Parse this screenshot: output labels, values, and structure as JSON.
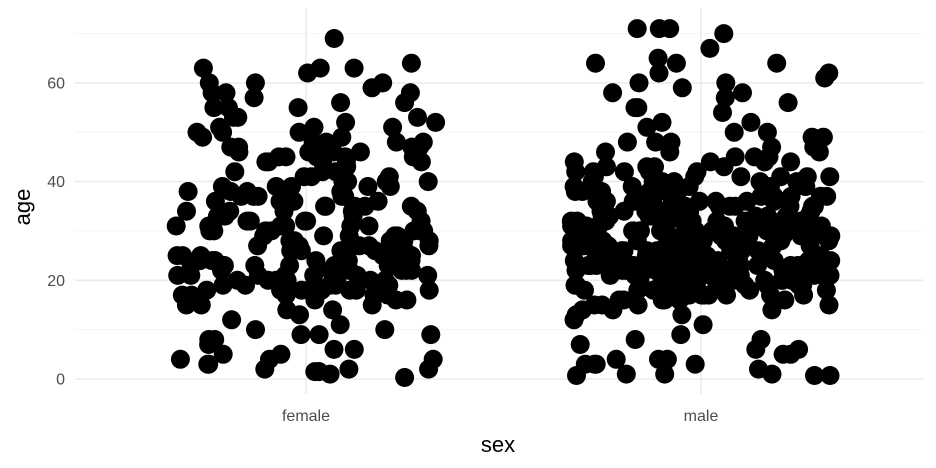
{
  "chart_data": {
    "type": "scatter",
    "jitter": true,
    "title": "",
    "xlabel": "sex",
    "ylabel": "age",
    "categories": [
      "female",
      "male"
    ],
    "y_ticks": [
      "0",
      "20",
      "40",
      "60"
    ],
    "ylim": [
      -3,
      73
    ],
    "grid": true,
    "legend": "none",
    "point_color": "#000000",
    "series": [
      {
        "category": "female",
        "values": [
          1.5,
          64,
          69,
          51,
          52,
          45,
          47,
          44,
          56,
          58,
          55,
          50,
          53,
          60,
          62,
          49,
          45,
          35,
          32,
          36,
          30,
          25,
          22,
          24,
          20,
          23,
          18,
          16,
          11,
          12,
          9,
          4,
          2,
          3,
          8,
          7,
          1.5,
          2,
          52,
          48,
          50,
          46,
          40,
          39,
          41,
          44,
          38,
          37,
          35,
          33,
          36,
          30,
          28,
          29,
          27,
          26,
          25,
          24,
          22,
          21,
          20,
          19,
          18,
          17,
          16,
          15,
          14,
          10,
          6,
          4,
          1,
          2,
          1.5,
          63,
          63,
          57,
          58,
          55,
          50,
          49,
          48,
          46,
          44,
          42,
          40,
          38,
          36,
          34,
          32,
          30,
          29,
          28,
          26,
          25,
          23,
          22,
          21,
          20,
          18,
          17,
          15,
          13,
          6,
          60,
          47,
          46,
          45,
          40,
          39,
          38,
          36,
          35,
          33,
          31,
          29,
          27,
          26,
          24,
          22,
          21,
          19,
          18,
          17,
          15,
          53,
          55,
          51,
          48,
          46,
          44,
          42,
          40,
          38,
          36,
          34,
          32,
          30,
          28,
          26,
          25,
          23,
          22,
          20,
          19,
          16,
          9,
          8,
          4,
          5,
          0.3,
          59,
          60,
          58,
          63,
          56,
          53,
          51,
          47,
          45,
          43,
          41,
          39,
          37,
          35,
          33,
          31,
          30,
          28,
          27,
          25,
          24,
          23,
          22,
          21,
          19,
          18,
          17,
          14,
          10,
          9,
          3,
          48,
          47,
          45,
          44,
          42,
          38,
          37,
          35,
          34,
          32,
          31,
          30,
          29,
          27,
          26,
          24,
          23,
          21,
          20,
          19,
          5,
          37,
          34,
          31,
          29,
          26,
          24,
          22,
          20,
          18,
          16,
          33,
          31,
          28,
          27,
          25,
          23,
          21,
          19,
          17,
          41,
          39,
          36,
          33,
          31,
          28,
          26,
          24,
          22,
          20,
          18,
          39,
          37,
          34,
          32,
          30,
          27,
          25,
          23,
          21,
          19
        ]
      },
      {
        "category": "male",
        "values": [
          0.7,
          0.7,
          59,
          64,
          65,
          70,
          71,
          71,
          67,
          64,
          61,
          62,
          60,
          58,
          55,
          56,
          52,
          50,
          51,
          48,
          49,
          46,
          45,
          44,
          43,
          42,
          41,
          40,
          39,
          38,
          37,
          36,
          35,
          34,
          33,
          32,
          31,
          30,
          29,
          28,
          27,
          26,
          25,
          24,
          23,
          22,
          21,
          20,
          19,
          18,
          17,
          16,
          15,
          14,
          13,
          12,
          11,
          9,
          8,
          7,
          6,
          5,
          4,
          3,
          3,
          1,
          0.7,
          1,
          2,
          3,
          4,
          71,
          64,
          62,
          60,
          58,
          57,
          55,
          54,
          52,
          50,
          48,
          47,
          46,
          44,
          43,
          42,
          41,
          40,
          39,
          38,
          37,
          36,
          35,
          34,
          33,
          32,
          31,
          30,
          29,
          28,
          27,
          26,
          25,
          24,
          23,
          22,
          21,
          20,
          19,
          18,
          17,
          16,
          13,
          8,
          6,
          5,
          4,
          3,
          1,
          49,
          48,
          47,
          45,
          44,
          42,
          41,
          40,
          38,
          37,
          36,
          35,
          34,
          33,
          32,
          31,
          30,
          29,
          28,
          27,
          26,
          25,
          24,
          23,
          22,
          21,
          20,
          19,
          18,
          17,
          16,
          15,
          14,
          46,
          45,
          44,
          43,
          42,
          41,
          40,
          39,
          38,
          37,
          36,
          35,
          34,
          33,
          32,
          31,
          30,
          29,
          28,
          27,
          26,
          25,
          24,
          23,
          22,
          21,
          20,
          19,
          18,
          17,
          16,
          15,
          14,
          43,
          42,
          41,
          40,
          39,
          38,
          37,
          36,
          35,
          34,
          33,
          32,
          31,
          30,
          29,
          28,
          27,
          26,
          25,
          24,
          23,
          22,
          21,
          20,
          19,
          18,
          17,
          16,
          15,
          41,
          40,
          39,
          38,
          37,
          36,
          35,
          34,
          33,
          32,
          31,
          30,
          29,
          28,
          27,
          26,
          25,
          24,
          23,
          22,
          21,
          20,
          19,
          18,
          17,
          16,
          39,
          38,
          37,
          36,
          35,
          34,
          33,
          32,
          31,
          30,
          29,
          28,
          27,
          26,
          25,
          24,
          23,
          22,
          21,
          20,
          19,
          18,
          17,
          37,
          36,
          35,
          34,
          33,
          32,
          31,
          30,
          29,
          28,
          27,
          26,
          25,
          24,
          23,
          22,
          21,
          20,
          19,
          18,
          35,
          34,
          33,
          32,
          31,
          30,
          29,
          28,
          27,
          26,
          25,
          24,
          23,
          22,
          21,
          20,
          19,
          33,
          32,
          31,
          30,
          29,
          28,
          27,
          26,
          25,
          24,
          23,
          22,
          21,
          20,
          31,
          30,
          29,
          28,
          27,
          26,
          25,
          24,
          23,
          22,
          21,
          29,
          28,
          27,
          26,
          25,
          24,
          23,
          22,
          27,
          26,
          25,
          24,
          23,
          26,
          25,
          24,
          25,
          24,
          23,
          22,
          21,
          20,
          19,
          24,
          23,
          22,
          21,
          20
        ]
      }
    ]
  }
}
